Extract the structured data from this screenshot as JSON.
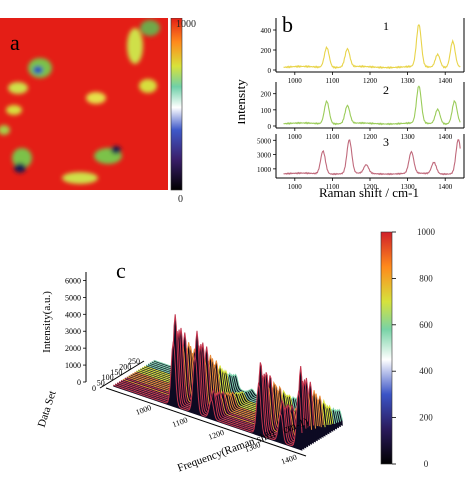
{
  "panel_letters": {
    "a": "a",
    "b": "b",
    "c": "c"
  },
  "chart_data": [
    {
      "type": "heatmap",
      "label": "a",
      "colorbar": {
        "min_label": "0",
        "max_label": "1000",
        "min": 0,
        "max": 1000
      },
      "colors": {
        "high": "#e41e16",
        "mid": "#86c441",
        "low": "#1b1a4f"
      }
    },
    {
      "type": "line",
      "label": "b",
      "xlabel": "Raman shift / cm-1",
      "ylabel": "Intensity",
      "xlim": [
        950,
        1450
      ],
      "xticks": [
        "1000",
        "1100",
        "1200",
        "1300",
        "1400"
      ],
      "subplots": [
        {
          "label": "1",
          "color": "#e8d44a",
          "yticks": [
            "0",
            "200",
            "400"
          ],
          "ylim": [
            0,
            500
          ],
          "peaks": [
            {
              "x": 1085,
              "y": 200
            },
            {
              "x": 1140,
              "y": 180
            },
            {
              "x": 1330,
              "y": 420
            },
            {
              "x": 1380,
              "y": 130
            },
            {
              "x": 1420,
              "y": 260
            }
          ]
        },
        {
          "label": "2",
          "color": "#9bcc5a",
          "yticks": [
            "0",
            "100",
            "200"
          ],
          "ylim": [
            0,
            260
          ],
          "peaks": [
            {
              "x": 1085,
              "y": 140
            },
            {
              "x": 1140,
              "y": 110
            },
            {
              "x": 1330,
              "y": 230
            },
            {
              "x": 1380,
              "y": 90
            },
            {
              "x": 1425,
              "y": 140
            }
          ]
        },
        {
          "label": "3",
          "color": "#c06a7c",
          "yticks": [
            "1000",
            "3000",
            "5000"
          ],
          "ylim": [
            0,
            5600
          ],
          "peaks": [
            {
              "x": 1075,
              "y": 3200
            },
            {
              "x": 1145,
              "y": 4700
            },
            {
              "x": 1190,
              "y": 1200
            },
            {
              "x": 1310,
              "y": 3000
            },
            {
              "x": 1370,
              "y": 1600
            },
            {
              "x": 1435,
              "y": 4800
            }
          ]
        }
      ]
    },
    {
      "type": "waterfall",
      "label": "c",
      "zlabel": "Intensity(a.u.)",
      "xlabel": "Frequency(Raman shift / cm-1)",
      "ylabel": "Data Set",
      "zticks": [
        "0",
        "1000",
        "2000",
        "3000",
        "4000",
        "5000",
        "6000"
      ],
      "zlim": [
        0,
        6500
      ],
      "xticks": [
        "1000",
        "1100",
        "1200",
        "1300",
        "1400"
      ],
      "yticks": [
        "0",
        "50",
        "100",
        "150",
        "200",
        "250"
      ],
      "colorbar": {
        "ticks": [
          "0",
          "200",
          "400",
          "600",
          "800",
          "1000"
        ],
        "min": 0,
        "max": 1000
      }
    }
  ]
}
